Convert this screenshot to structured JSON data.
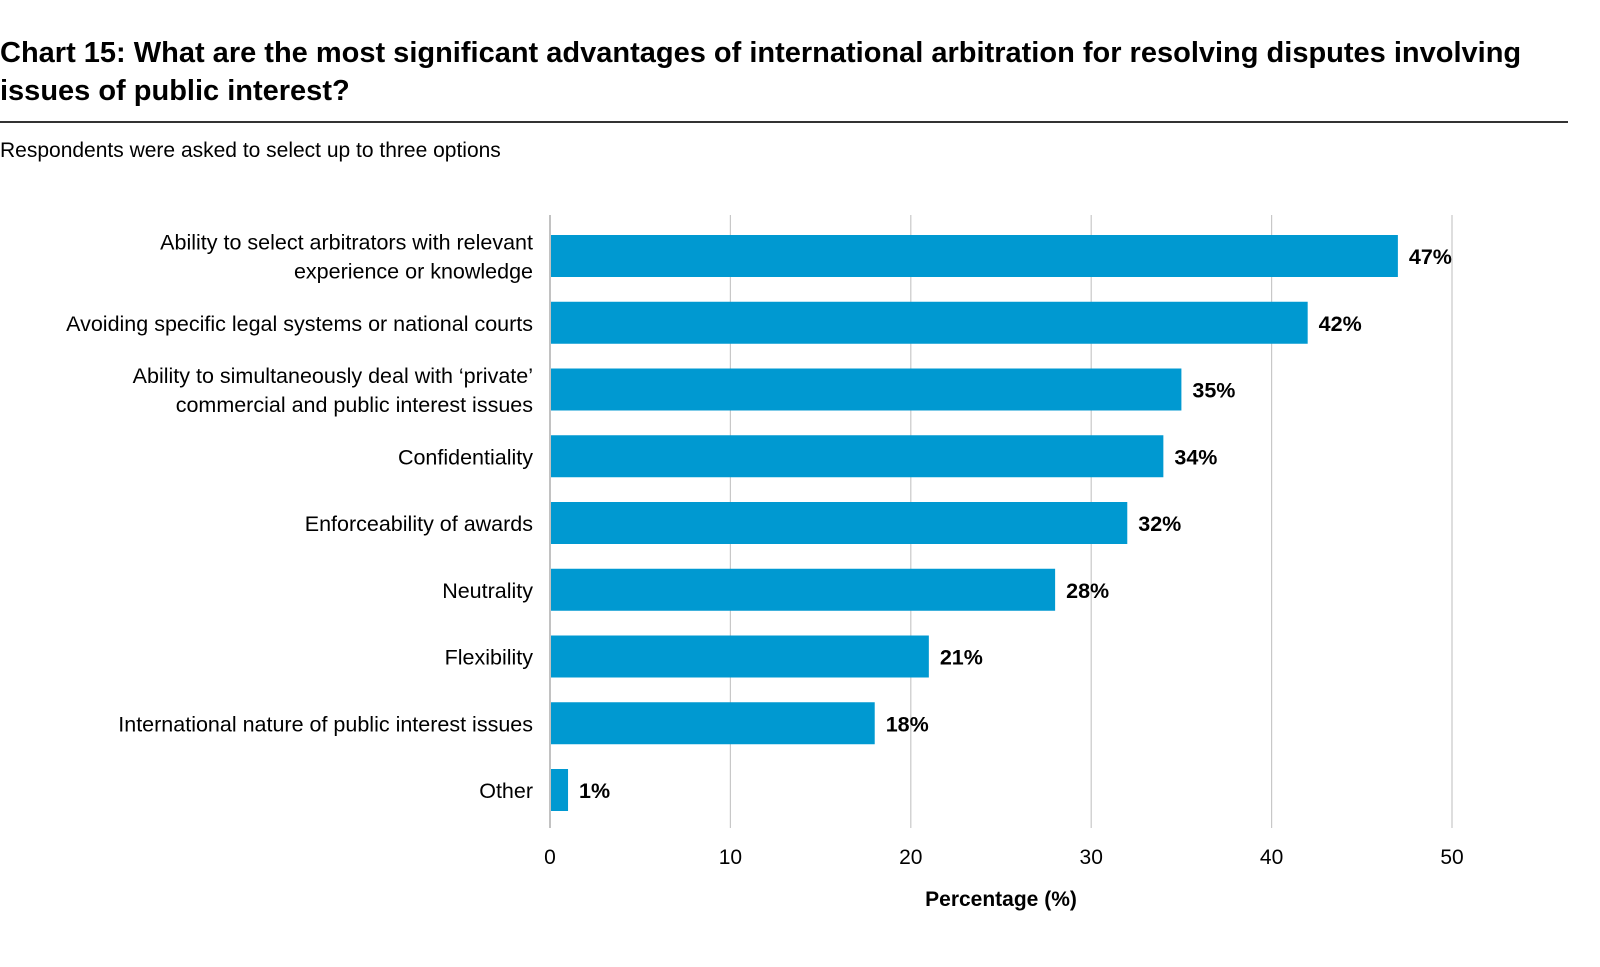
{
  "title": "Chart 15: What are the most significant advantages of international arbitration for resolving disputes involving issues of public interest?",
  "subtitle": "Respondents were asked to select up to three options",
  "chart_data": {
    "type": "bar",
    "orientation": "horizontal",
    "title": "Chart 15: What are the most significant advantages of international arbitration for resolving disputes involving issues of public interest?",
    "subtitle": "Respondents were asked to select up to three options",
    "categories": [
      [
        "Ability to select arbitrators with relevant",
        "experience or knowledge"
      ],
      [
        "Avoiding specific legal systems or national courts"
      ],
      [
        "Ability to simultaneously deal with ‘private’",
        "commercial and public interest issues"
      ],
      [
        "Confidentiality"
      ],
      [
        "Enforceability of awards"
      ],
      [
        "Neutrality"
      ],
      [
        "Flexibility"
      ],
      [
        "International nature of public interest issues"
      ],
      [
        "Other"
      ]
    ],
    "values": [
      47,
      42,
      35,
      34,
      32,
      28,
      21,
      18,
      1
    ],
    "value_labels": [
      "47%",
      "42%",
      "35%",
      "34%",
      "32%",
      "28%",
      "21%",
      "18%",
      "1%"
    ],
    "xlabel": "Percentage (%)",
    "ylabel": "",
    "xlim": [
      0,
      50
    ],
    "xticks": [
      0,
      10,
      20,
      30,
      40,
      50
    ],
    "xtick_labels": [
      "0",
      "10",
      "20",
      "30",
      "40",
      "50"
    ],
    "grid": true,
    "bar_color": "#0099D1"
  }
}
